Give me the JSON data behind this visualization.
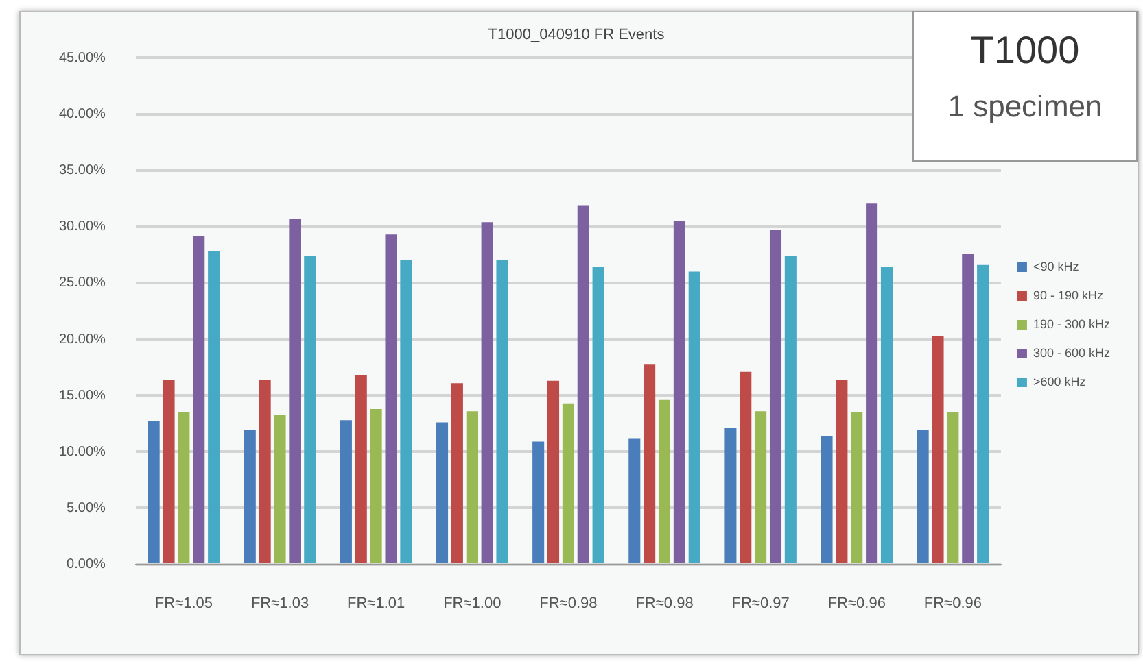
{
  "chart_data": {
    "type": "bar",
    "title": "T1000_040910 FR Events",
    "categories": [
      "FR≈1.05",
      "FR≈1.03",
      "FR≈1.01",
      "FR≈1.00",
      "FR≈0.98",
      "FR≈0.98",
      "FR≈0.97",
      "FR≈0.96",
      "FR≈0.96"
    ],
    "series": [
      {
        "name": "<90 kHz",
        "color": "#4a7ebb",
        "values": [
          12.7,
          11.9,
          12.8,
          12.6,
          10.9,
          11.2,
          12.1,
          11.4,
          11.9
        ]
      },
      {
        "name": "90 - 190 kHz",
        "color": "#be4b48",
        "values": [
          16.4,
          16.4,
          16.8,
          16.1,
          16.3,
          17.8,
          17.1,
          16.4,
          20.3
        ]
      },
      {
        "name": "190 - 300 kHz",
        "color": "#98b954",
        "values": [
          13.5,
          13.3,
          13.8,
          13.6,
          14.3,
          14.6,
          13.6,
          13.5,
          13.5
        ]
      },
      {
        "name": "300 - 600 kHz",
        "color": "#7d60a0",
        "values": [
          29.2,
          30.7,
          29.3,
          30.4,
          31.9,
          30.5,
          29.7,
          32.1,
          27.6
        ]
      },
      {
        "name": ">600 kHz",
        "color": "#46aac5",
        "values": [
          27.8,
          27.4,
          27.0,
          27.0,
          26.4,
          26.0,
          27.4,
          26.4,
          26.6
        ]
      }
    ],
    "ylim": [
      0,
      45
    ],
    "yticks": [
      {
        "value": 0,
        "label": "0.00%"
      },
      {
        "value": 5,
        "label": "5.00%"
      },
      {
        "value": 10,
        "label": "10.00%"
      },
      {
        "value": 15,
        "label": "15.00%"
      },
      {
        "value": 20,
        "label": "20.00%"
      },
      {
        "value": 25,
        "label": "25.00%"
      },
      {
        "value": 30,
        "label": "30.00%"
      },
      {
        "value": 35,
        "label": "35.00%"
      },
      {
        "value": 40,
        "label": "40.00%"
      },
      {
        "value": 45,
        "label": "45.00%"
      }
    ],
    "grid": "y",
    "legend": "right",
    "annotations": [
      "T1000",
      "1 specimen"
    ]
  }
}
